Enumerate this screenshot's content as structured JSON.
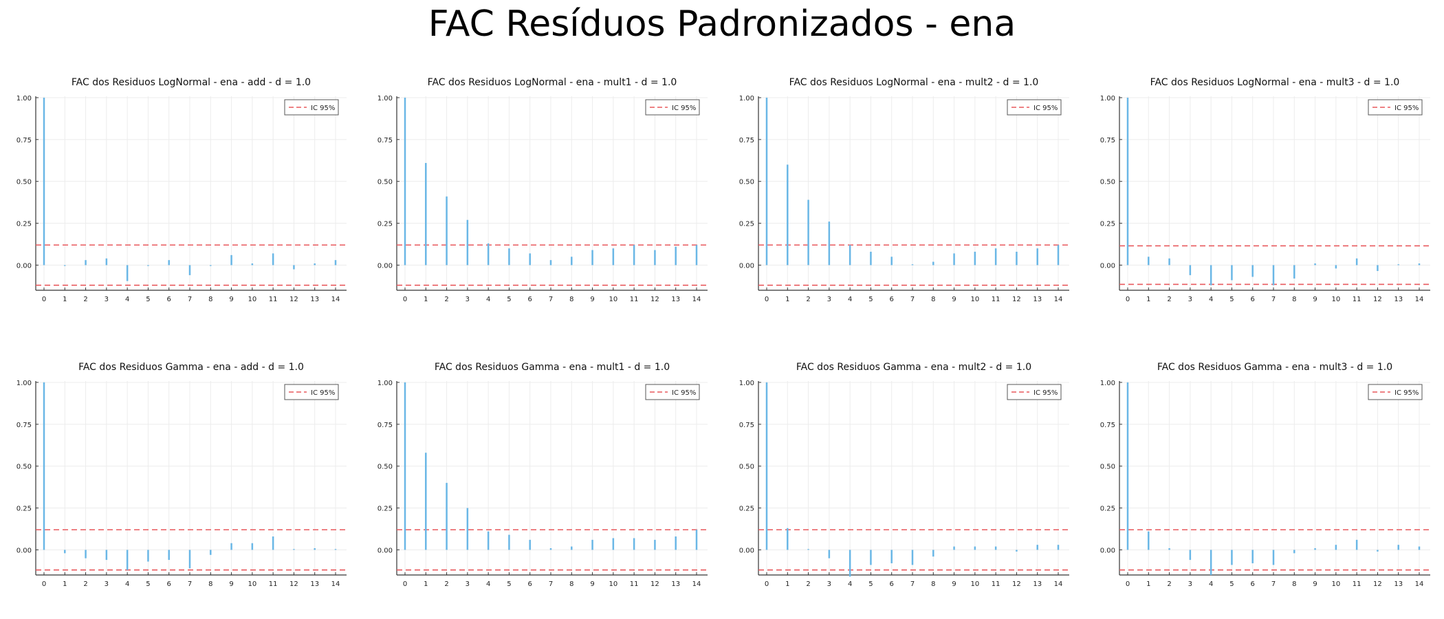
{
  "page_title": "FAC Resíduos Padronizados - ena",
  "legend_label": "IC 95%",
  "colors": {
    "bar": "#6ab7e6",
    "ci": "#e8585c",
    "axis": "#333333",
    "grid": "#ececec"
  },
  "chart_data": [
    {
      "type": "bar",
      "title": "FAC dos Residuos  LogNormal - ena - add - d = 1.0",
      "x": [
        0,
        1,
        2,
        3,
        4,
        5,
        6,
        7,
        8,
        9,
        10,
        11,
        12,
        13,
        14
      ],
      "values": [
        1.0,
        -0.005,
        0.03,
        0.04,
        -0.095,
        -0.005,
        0.03,
        -0.06,
        -0.005,
        0.06,
        0.01,
        0.07,
        -0.025,
        0.01,
        0.03
      ],
      "ci": 0.12,
      "ylim": [
        -0.15,
        1.0
      ],
      "yticks": [
        0.0,
        0.25,
        0.5,
        0.75,
        1.0
      ],
      "ytick_labels": [
        "0.00",
        "0.25",
        "0.50",
        "0.75",
        "1.00"
      ],
      "legend": "IC 95%",
      "legend_position": "top-right",
      "grid": true
    },
    {
      "type": "bar",
      "title": "FAC dos Residuos  LogNormal - ena - mult1 - d = 1.0",
      "x": [
        0,
        1,
        2,
        3,
        4,
        5,
        6,
        7,
        8,
        9,
        10,
        11,
        12,
        13,
        14
      ],
      "values": [
        1.0,
        0.61,
        0.41,
        0.27,
        0.13,
        0.1,
        0.07,
        0.03,
        0.05,
        0.09,
        0.1,
        0.12,
        0.09,
        0.11,
        0.12
      ],
      "ci": 0.12,
      "ylim": [
        -0.15,
        1.0
      ],
      "yticks": [
        0.0,
        0.25,
        0.5,
        0.75,
        1.0
      ],
      "ytick_labels": [
        "0.00",
        "0.25",
        "0.50",
        "0.75",
        "1.00"
      ],
      "legend": "IC 95%",
      "legend_position": "top-right",
      "grid": true
    },
    {
      "type": "bar",
      "title": "FAC dos Residuos  LogNormal - ena - mult2 - d = 1.0",
      "x": [
        0,
        1,
        2,
        3,
        4,
        5,
        6,
        7,
        8,
        9,
        10,
        11,
        12,
        13,
        14
      ],
      "values": [
        1.0,
        0.6,
        0.39,
        0.26,
        0.12,
        0.08,
        0.05,
        0.005,
        0.02,
        0.07,
        0.08,
        0.1,
        0.08,
        0.1,
        0.12
      ],
      "ci": 0.12,
      "ylim": [
        -0.15,
        1.0
      ],
      "yticks": [
        0.0,
        0.25,
        0.5,
        0.75,
        1.0
      ],
      "ytick_labels": [
        "0.00",
        "0.25",
        "0.50",
        "0.75",
        "1.00"
      ],
      "legend": "IC 95%",
      "legend_position": "top-right",
      "grid": true
    },
    {
      "type": "bar",
      "title": "FAC dos Residuos  LogNormal - ena - mult3 - d = 1.0",
      "x": [
        0,
        1,
        2,
        3,
        4,
        5,
        6,
        7,
        8,
        9,
        10,
        11,
        12,
        13,
        14
      ],
      "values": [
        1.0,
        0.05,
        0.04,
        -0.06,
        -0.12,
        -0.09,
        -0.07,
        -0.12,
        -0.08,
        0.01,
        -0.02,
        0.04,
        -0.035,
        0.005,
        0.01
      ],
      "ci": 0.115,
      "ylim": [
        -0.15,
        1.0
      ],
      "yticks": [
        0.0,
        0.25,
        0.5,
        0.75,
        1.0
      ],
      "ytick_labels": [
        "0.00",
        "0.25",
        "0.50",
        "0.75",
        "1.00"
      ],
      "legend": "IC 95%",
      "legend_position": "top-right",
      "grid": true
    },
    {
      "type": "bar",
      "title": "FAC dos Residuos  Gamma - ena - add - d = 1.0",
      "x": [
        0,
        1,
        2,
        3,
        4,
        5,
        6,
        7,
        8,
        9,
        10,
        11,
        12,
        13,
        14
      ],
      "values": [
        1.0,
        -0.02,
        -0.05,
        -0.06,
        -0.12,
        -0.07,
        -0.06,
        -0.11,
        -0.03,
        0.04,
        0.04,
        0.08,
        0.005,
        0.01,
        0.005
      ],
      "ci": 0.12,
      "ylim": [
        -0.15,
        1.0
      ],
      "yticks": [
        0.0,
        0.25,
        0.5,
        0.75,
        1.0
      ],
      "ytick_labels": [
        "0.00",
        "0.25",
        "0.50",
        "0.75",
        "1.00"
      ],
      "legend": "IC 95%",
      "legend_position": "top-right",
      "grid": true
    },
    {
      "type": "bar",
      "title": "FAC dos Residuos  Gamma - ena - mult1 - d = 1.0",
      "x": [
        0,
        1,
        2,
        3,
        4,
        5,
        6,
        7,
        8,
        9,
        10,
        11,
        12,
        13,
        14
      ],
      "values": [
        1.0,
        0.58,
        0.4,
        0.25,
        0.11,
        0.09,
        0.06,
        0.01,
        0.02,
        0.06,
        0.07,
        0.07,
        0.06,
        0.08,
        0.12
      ],
      "ci": 0.12,
      "ylim": [
        -0.15,
        1.0
      ],
      "yticks": [
        0.0,
        0.25,
        0.5,
        0.75,
        1.0
      ],
      "ytick_labels": [
        "0.00",
        "0.25",
        "0.50",
        "0.75",
        "1.00"
      ],
      "legend": "IC 95%",
      "legend_position": "top-right",
      "grid": true
    },
    {
      "type": "bar",
      "title": "FAC dos Residuos  Gamma - ena - mult2 - d = 1.0",
      "x": [
        0,
        1,
        2,
        3,
        4,
        5,
        6,
        7,
        8,
        9,
        10,
        11,
        12,
        13,
        14
      ],
      "values": [
        1.0,
        0.13,
        0.005,
        -0.05,
        -0.16,
        -0.09,
        -0.08,
        -0.09,
        -0.04,
        0.02,
        0.02,
        0.02,
        -0.01,
        0.03,
        0.03
      ],
      "ci": 0.12,
      "ylim": [
        -0.15,
        1.0
      ],
      "yticks": [
        0.0,
        0.25,
        0.5,
        0.75,
        1.0
      ],
      "ytick_labels": [
        "0.00",
        "0.25",
        "0.50",
        "0.75",
        "1.00"
      ],
      "legend": "IC 95%",
      "legend_position": "top-right",
      "grid": true
    },
    {
      "type": "bar",
      "title": "FAC dos Residuos  Gamma - ena - mult3 - d = 1.0",
      "x": [
        0,
        1,
        2,
        3,
        4,
        5,
        6,
        7,
        8,
        9,
        10,
        11,
        12,
        13,
        14
      ],
      "values": [
        1.0,
        0.11,
        0.01,
        -0.06,
        -0.15,
        -0.09,
        -0.08,
        -0.09,
        -0.02,
        0.01,
        0.03,
        0.06,
        -0.01,
        0.03,
        0.02
      ],
      "ci": 0.12,
      "ylim": [
        -0.15,
        1.0
      ],
      "yticks": [
        0.0,
        0.25,
        0.5,
        0.75,
        1.0
      ],
      "ytick_labels": [
        "0.00",
        "0.25",
        "0.50",
        "0.75",
        "1.00"
      ],
      "legend": "IC 95%",
      "legend_position": "top-right",
      "grid": true
    }
  ]
}
